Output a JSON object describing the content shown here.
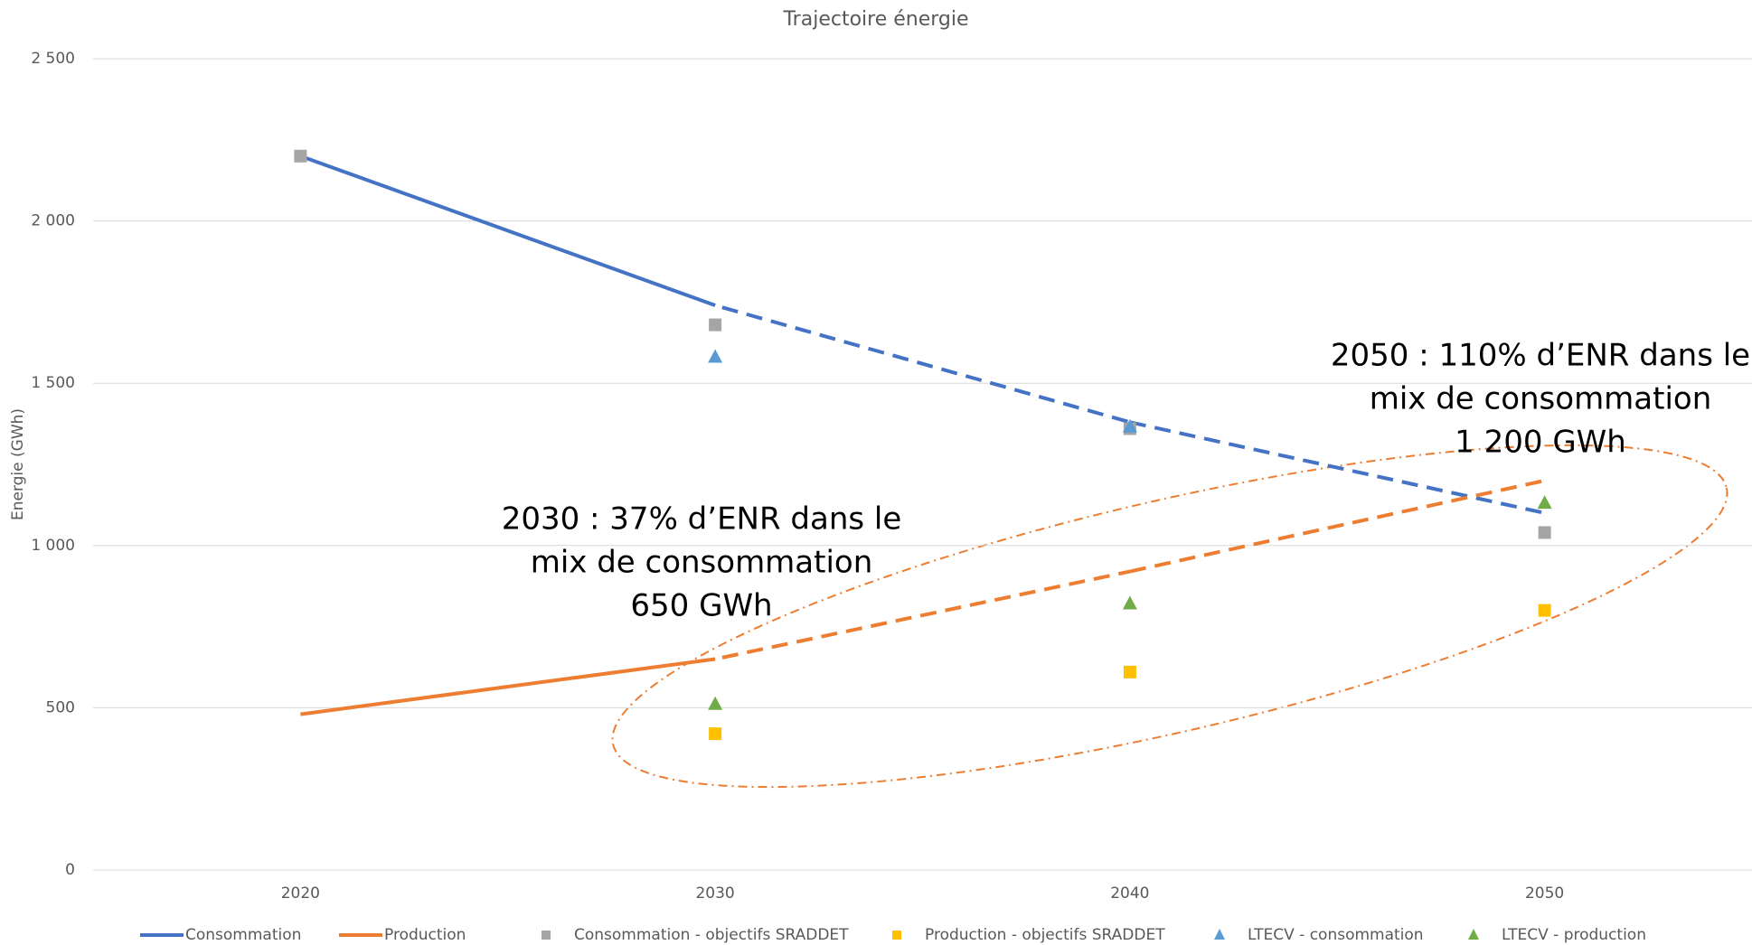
{
  "chart_data": {
    "type": "line",
    "title": "Trajectoire énergie",
    "y_label": "Energie (GWh)",
    "categories": [
      "2020",
      "2030",
      "2040",
      "2050"
    ],
    "ylim": [
      0,
      2500
    ],
    "yticks": [
      0,
      500,
      {
        "value": 1000,
        "label": "1 000"
      },
      {
        "value": 1500,
        "label": "1 500"
      },
      {
        "value": 2000,
        "label": "2 000"
      },
      {
        "value": 2500,
        "label": "2 500"
      }
    ],
    "grid": true,
    "legend": "bottom",
    "dashed_from_index": 1,
    "series": [
      {
        "name": "Consommation",
        "color": "#4472c4",
        "kind": "line",
        "values": [
          2200,
          1740,
          1380,
          1100
        ]
      },
      {
        "name": "Production",
        "color": "#ed7d31",
        "kind": "line",
        "values": [
          480,
          650,
          920,
          1200
        ]
      },
      {
        "name": "Consommation - objectifs SRADDET",
        "color": "#a5a5a5",
        "kind": "square",
        "values": [
          2200,
          1680,
          1360,
          1040
        ]
      },
      {
        "name": "Production - objectifs SRADDET",
        "color": "#ffc000",
        "kind": "square",
        "values": [
          null,
          420,
          610,
          800
        ]
      },
      {
        "name": "LTECV - consommation",
        "color": "#5b9bd5",
        "kind": "triangle",
        "values": [
          null,
          1580,
          1365,
          null
        ]
      },
      {
        "name": "LTECV - production",
        "color": "#70ad47",
        "kind": "triangle",
        "values": [
          null,
          510,
          820,
          1130
        ]
      }
    ],
    "annotations": [
      {
        "lines": [
          "2030 : 37% d’ENR dans le",
          "mix de consommation",
          "650 GWh"
        ]
      },
      {
        "lines": [
          "2050 : 110% d’ENR dans le",
          "mix de consommation",
          "1 200 GWh"
        ]
      }
    ]
  }
}
